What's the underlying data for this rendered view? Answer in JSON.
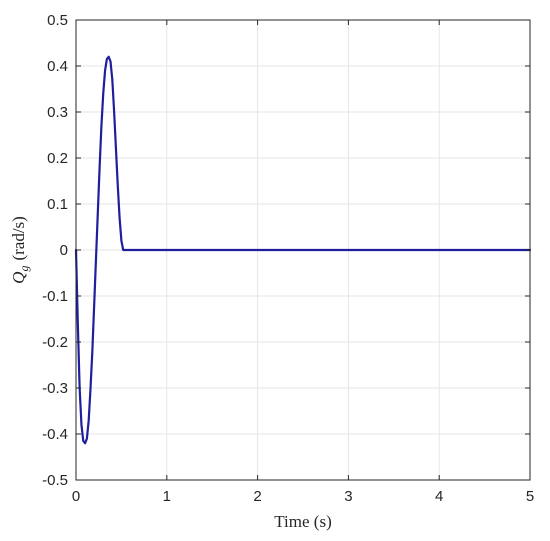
{
  "chart_data": {
    "type": "line",
    "title": "",
    "xlabel": "Time (s)",
    "ylabel": {
      "symbol": "Q",
      "subscript": "g",
      "unit": "(rad/s)"
    },
    "xlim": [
      0,
      5
    ],
    "ylim": [
      -0.5,
      0.5
    ],
    "xticks": [
      0,
      1,
      2,
      3,
      4,
      5
    ],
    "xtick_labels": [
      "0",
      "1",
      "2",
      "3",
      "4",
      "5"
    ],
    "yticks": [
      0.5,
      0.4,
      0.3,
      0.2,
      0.1,
      0,
      -0.1,
      -0.2,
      -0.3,
      -0.4,
      -0.5
    ],
    "ytick_labels": [
      "0.5",
      "0.4",
      "0.3",
      "0.2",
      "0.1",
      "0",
      "-0.1",
      "-0.2",
      "-0.3",
      "-0.4",
      "-0.5"
    ],
    "grid": true,
    "line_color": "#1f1f9e",
    "series": [
      {
        "x": [
          0,
          0.02,
          0.04,
          0.06,
          0.08,
          0.1,
          0.12,
          0.14,
          0.16,
          0.18,
          0.2,
          0.22,
          0.24,
          0.26,
          0.28,
          0.3,
          0.32,
          0.34,
          0.36,
          0.38,
          0.4,
          0.42,
          0.44,
          0.46,
          0.48,
          0.5,
          0.52,
          0.54,
          1,
          2,
          3,
          4,
          5
        ],
        "values": [
          0,
          -0.16,
          -0.3,
          -0.38,
          -0.415,
          -0.42,
          -0.41,
          -0.37,
          -0.3,
          -0.22,
          -0.12,
          -0.02,
          0.08,
          0.18,
          0.27,
          0.34,
          0.39,
          0.415,
          0.42,
          0.41,
          0.37,
          0.3,
          0.22,
          0.14,
          0.07,
          0.02,
          0,
          0,
          0,
          0,
          0,
          0,
          0
        ]
      }
    ]
  }
}
